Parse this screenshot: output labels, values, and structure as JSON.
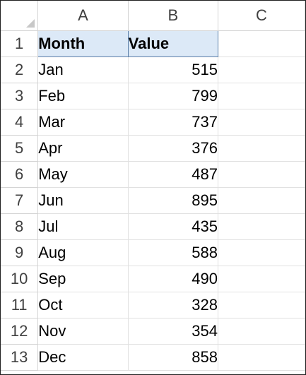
{
  "columns": [
    "A",
    "B",
    "C"
  ],
  "table": {
    "headers": [
      "Month",
      "Value"
    ],
    "rows": [
      {
        "row": "2",
        "month": "Jan",
        "value": "515"
      },
      {
        "row": "3",
        "month": "Feb",
        "value": "799"
      },
      {
        "row": "4",
        "month": "Mar",
        "value": "737"
      },
      {
        "row": "5",
        "month": "Apr",
        "value": "376"
      },
      {
        "row": "6",
        "month": "May",
        "value": "487"
      },
      {
        "row": "7",
        "month": "Jun",
        "value": "895"
      },
      {
        "row": "8",
        "month": "Jul",
        "value": "435"
      },
      {
        "row": "9",
        "month": "Aug",
        "value": "588"
      },
      {
        "row": "10",
        "month": "Sep",
        "value": "490"
      },
      {
        "row": "11",
        "month": "Oct",
        "value": "328"
      },
      {
        "row": "12",
        "month": "Nov",
        "value": "354"
      },
      {
        "row": "13",
        "month": "Dec",
        "value": "858"
      }
    ]
  },
  "header_row_number": "1",
  "colors": {
    "header_fill": "#dce9f7",
    "header_border": "#5b7fa8",
    "gridline": "#e1e1e1"
  },
  "icons": {
    "select_all": "select-all-triangle-icon"
  }
}
